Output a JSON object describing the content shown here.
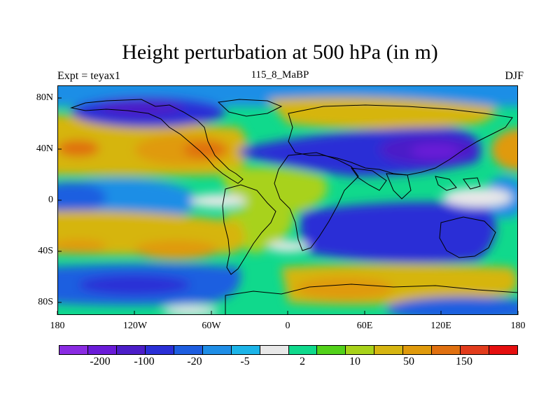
{
  "title": "Height perturbation at 500 hPa (in m)",
  "subtitle_left": "Expt = teyax1",
  "subtitle_center": "115_8_MaBP",
  "subtitle_right": "DJF",
  "y_axis": [
    "80N",
    "40N",
    "0",
    "40S",
    "80S"
  ],
  "x_axis": [
    "180",
    "120W",
    "60W",
    "0",
    "60E",
    "120E",
    "180"
  ],
  "colorbar": {
    "colors": [
      "#8a2be2",
      "#6a1bd8",
      "#4c1dc8",
      "#2a2fd6",
      "#1e5ee0",
      "#1f8ee6",
      "#1cb4e8",
      "#e8e8e8",
      "#10d98c",
      "#52d11a",
      "#a8d21a",
      "#d6b511",
      "#e09a0c",
      "#e07010",
      "#e23c1c",
      "#e50f0f"
    ],
    "labels": [
      "-200",
      "-100",
      "-20",
      "-5",
      "2",
      "10",
      "50",
      "150"
    ]
  },
  "palette": {
    "land_outline": "#000000",
    "neutral": "#e8e8e8"
  }
}
